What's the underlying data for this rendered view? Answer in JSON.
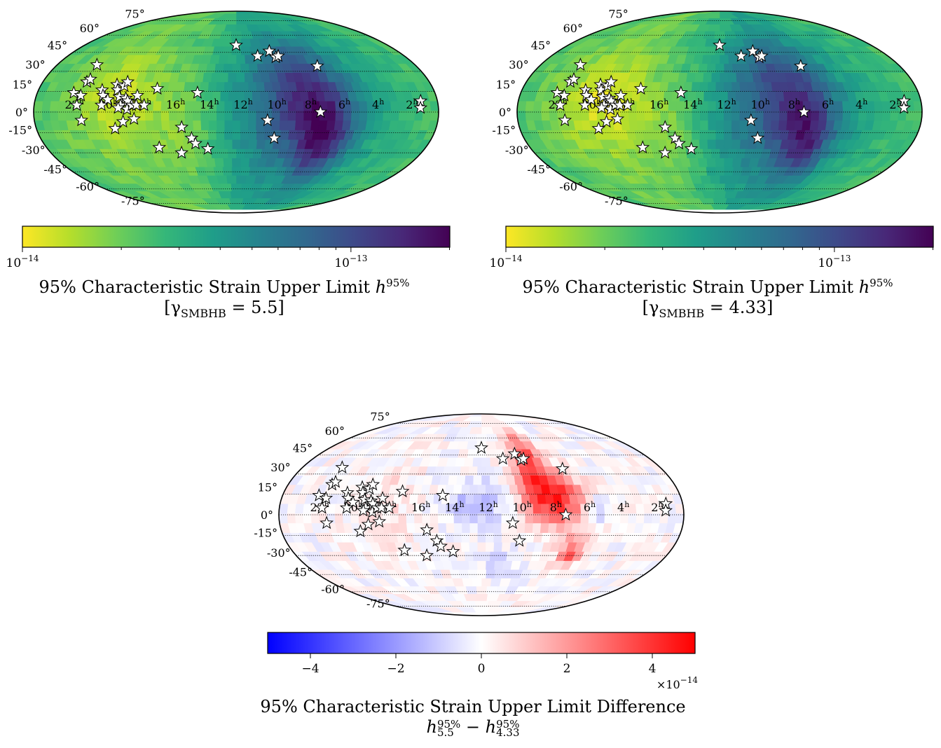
{
  "chart_data": [
    {
      "type": "heatmap",
      "projection": "mollweide",
      "colormap": "viridis_r",
      "color_scale": "log",
      "colorbar": {
        "range": [
          1e-14,
          2e-13
        ],
        "tick_labels": [
          {
            "base": "10",
            "exp": "−14",
            "value": 1e-14
          },
          {
            "base": "10",
            "exp": "−13",
            "value": 1e-13
          }
        ]
      },
      "title": {
        "line1": "95% Characteristic Strain Upper Limit ",
        "sym": "h",
        "sup": "95%",
        "line2_pre": "[γ",
        "line2_sub": "SMBHB",
        "line2_post": " = 5.5]"
      },
      "markers": "pulsars (white stars)"
    },
    {
      "type": "heatmap",
      "projection": "mollweide",
      "colormap": "viridis_r",
      "color_scale": "log",
      "colorbar": {
        "range": [
          1e-14,
          2e-13
        ],
        "tick_labels": [
          {
            "base": "10",
            "exp": "−14",
            "value": 1e-14
          },
          {
            "base": "10",
            "exp": "−13",
            "value": 1e-13
          }
        ]
      },
      "title": {
        "line1": "95% Characteristic Strain Upper Limit ",
        "sym": "h",
        "sup": "95%",
        "line2_pre": "[γ",
        "line2_sub": "SMBHB",
        "line2_post": " = 4.33]"
      },
      "markers": "pulsars (white stars)"
    },
    {
      "type": "heatmap",
      "projection": "mollweide",
      "colormap": "bwr",
      "color_scale": "linear",
      "colorbar": {
        "range": [
          -5e-14,
          5e-14
        ],
        "ticks": [
          "−4",
          "−2",
          "0",
          "2",
          "4"
        ],
        "tick_values": [
          -4,
          -2,
          0,
          2,
          4
        ],
        "offset": {
          "base": "×10",
          "exp": "−14"
        }
      },
      "title": {
        "line1": "95% Characteristic Strain Upper Limit Difference",
        "sym": "h",
        "sub_a": "5.5",
        "sup_a": "95%",
        "minus": " − ",
        "sub_b": "4.33",
        "sup_b": "95%"
      },
      "markers": "pulsars (white stars)"
    }
  ],
  "axes": {
    "lat_labels": [
      "75°",
      "60°",
      "45°",
      "30°",
      "15°",
      "0°",
      "-15°",
      "-30°",
      "-45°",
      "-60°",
      "-75°"
    ],
    "lat_values": [
      75,
      60,
      45,
      30,
      15,
      0,
      -15,
      -30,
      -45,
      -60,
      -75
    ],
    "ra_labels": [
      "22",
      "20",
      "18",
      "16",
      "14",
      "12",
      "10",
      "8",
      "6",
      "4",
      "2"
    ],
    "ra_values_h": [
      22,
      20,
      18,
      16,
      14,
      12,
      10,
      8,
      6,
      4,
      2
    ],
    "ra_suffix": "h"
  },
  "pulsars_deg": [
    [
      327,
      14
    ],
    [
      322,
      5
    ],
    [
      320,
      12
    ],
    [
      319,
      22
    ],
    [
      317,
      24
    ],
    [
      320,
      35
    ],
    [
      318,
      -6
    ],
    [
      302,
      16
    ],
    [
      300,
      12
    ],
    [
      295,
      9
    ],
    [
      290,
      20
    ],
    [
      288,
      16
    ],
    [
      285,
      11
    ],
    [
      283,
      5
    ],
    [
      283,
      19
    ],
    [
      281,
      22
    ],
    [
      279,
      10
    ],
    [
      277,
      8
    ],
    [
      277,
      2
    ],
    [
      273,
      5
    ],
    [
      271,
      -5
    ],
    [
      289,
      -12
    ],
    [
      281,
      -7
    ],
    [
      285,
      3
    ],
    [
      300,
      5
    ],
    [
      269,
      12
    ],
    [
      269,
      5
    ],
    [
      262,
      5
    ],
    [
      252,
      17
    ],
    [
      215,
      14
    ],
    [
      229,
      -11
    ],
    [
      221,
      -19
    ],
    [
      218,
      -23
    ],
    [
      207,
      -27
    ],
    [
      253,
      -26
    ],
    [
      233,
      -30
    ],
    [
      180,
      51
    ],
    [
      157,
      42
    ],
    [
      143,
      46
    ],
    [
      138,
      41
    ],
    [
      135,
      42
    ],
    [
      99,
      34
    ],
    [
      152,
      -6
    ],
    [
      145,
      -19
    ],
    [
      105,
      0
    ],
    [
      15,
      8
    ],
    [
      16,
      3
    ]
  ],
  "colors": {
    "viridis": [
      "#fde725",
      "#b5de2b",
      "#6ece58",
      "#35b779",
      "#1f9e89",
      "#26828e",
      "#31688e",
      "#3e4989",
      "#482878",
      "#440154"
    ],
    "diverging": [
      "#0000ff",
      "#ffffff",
      "#ff0000"
    ],
    "star_fill": "#ffffff",
    "star_stroke": "#000000"
  }
}
